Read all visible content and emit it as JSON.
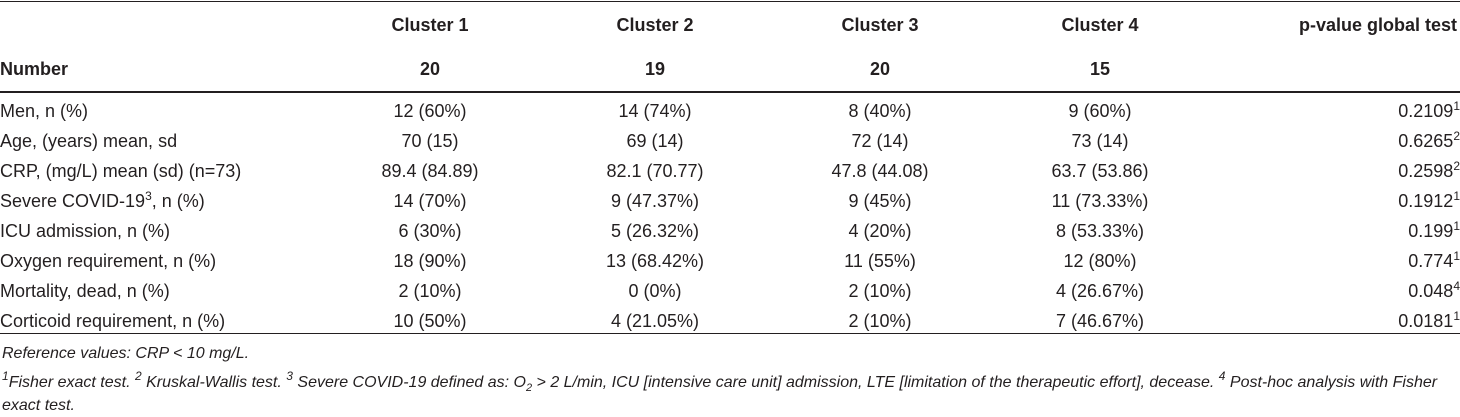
{
  "columns": [
    "Cluster 1",
    "Cluster 2",
    "Cluster 3",
    "Cluster 4",
    "p-value global test"
  ],
  "number_row": {
    "label": "Number",
    "values": [
      "20",
      "19",
      "20",
      "15",
      ""
    ]
  },
  "rows": [
    {
      "label": "Men, n (%)",
      "label_sup": "",
      "label_suffix": "",
      "values": [
        "12 (60%)",
        "14 (74%)",
        "8 (40%)",
        "9 (60%)"
      ],
      "p": "0.2109",
      "p_sup": "1"
    },
    {
      "label": "Age, (years) mean, sd",
      "label_sup": "",
      "label_suffix": "",
      "values": [
        "70 (15)",
        "69 (14)",
        "72 (14)",
        "73 (14)"
      ],
      "p": "0.6265",
      "p_sup": "2"
    },
    {
      "label": "CRP, (mg/L) mean (sd) (n=73)",
      "label_sup": "",
      "label_suffix": "",
      "values": [
        "89.4 (84.89)",
        "82.1 (70.77)",
        "47.8 (44.08)",
        "63.7 (53.86)"
      ],
      "p": "0.2598",
      "p_sup": "2"
    },
    {
      "label": "Severe COVID-19",
      "label_sup": "3",
      "label_suffix": ", n (%)",
      "values": [
        "14 (70%)",
        "9 (47.37%)",
        "9 (45%)",
        "11 (73.33%)"
      ],
      "p": "0.1912",
      "p_sup": "1"
    },
    {
      "label": "ICU admission, n (%)",
      "label_sup": "",
      "label_suffix": "",
      "values": [
        "6 (30%)",
        "5 (26.32%)",
        "4 (20%)",
        "8 (53.33%)"
      ],
      "p": "0.199",
      "p_sup": "1"
    },
    {
      "label": "Oxygen requirement, n (%)",
      "label_sup": "",
      "label_suffix": "",
      "values": [
        "18 (90%)",
        "13 (68.42%)",
        "11 (55%)",
        "12 (80%)"
      ],
      "p": "0.774",
      "p_sup": "1"
    },
    {
      "label": "Mortality, dead, n (%)",
      "label_sup": "",
      "label_suffix": "",
      "values": [
        "2 (10%)",
        "0 (0%)",
        "2 (10%)",
        "4 (26.67%)"
      ],
      "p": "0.048",
      "p_sup": "4"
    },
    {
      "label": "Corticoid requirement, n (%)",
      "label_sup": "",
      "label_suffix": "",
      "values": [
        "10 (50%)",
        "4 (21.05%)",
        "2 (10%)",
        "7 (46.67%)"
      ],
      "p": "0.0181",
      "p_sup": "1"
    }
  ],
  "notes": {
    "reference": "Reference values: CRP < 10 mg/L.",
    "footnote": {
      "m1": "1",
      "t1": "Fisher exact test. ",
      "m2": "2",
      "t2": " Kruskal-Wallis test. ",
      "m3": "3",
      "t3a": " Severe COVID-19 defined as: O",
      "o2_sub": "2",
      "t3b": " > 2 L/min, ICU [intensive care unit] admission, LTE [limitation of the therapeutic effort], decease. ",
      "m4": "4",
      "t4": " Post-hoc analysis with Fisher exact test."
    }
  }
}
